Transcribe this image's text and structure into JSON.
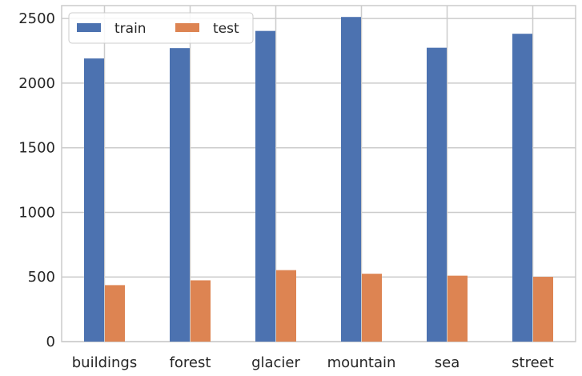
{
  "chart_data": {
    "type": "bar",
    "categories": [
      "buildings",
      "forest",
      "glacier",
      "mountain",
      "sea",
      "street"
    ],
    "series": [
      {
        "name": "train",
        "values": [
          2191,
          2271,
          2404,
          2512,
          2274,
          2382
        ],
        "color": "#4c72b0"
      },
      {
        "name": "test",
        "values": [
          437,
          474,
          553,
          525,
          510,
          501
        ],
        "color": "#dd8452"
      }
    ],
    "ylim": [
      0,
      2600
    ],
    "yticks": [
      0,
      500,
      1000,
      1500,
      2000,
      2500
    ],
    "grid": true,
    "legend": "top-left"
  }
}
